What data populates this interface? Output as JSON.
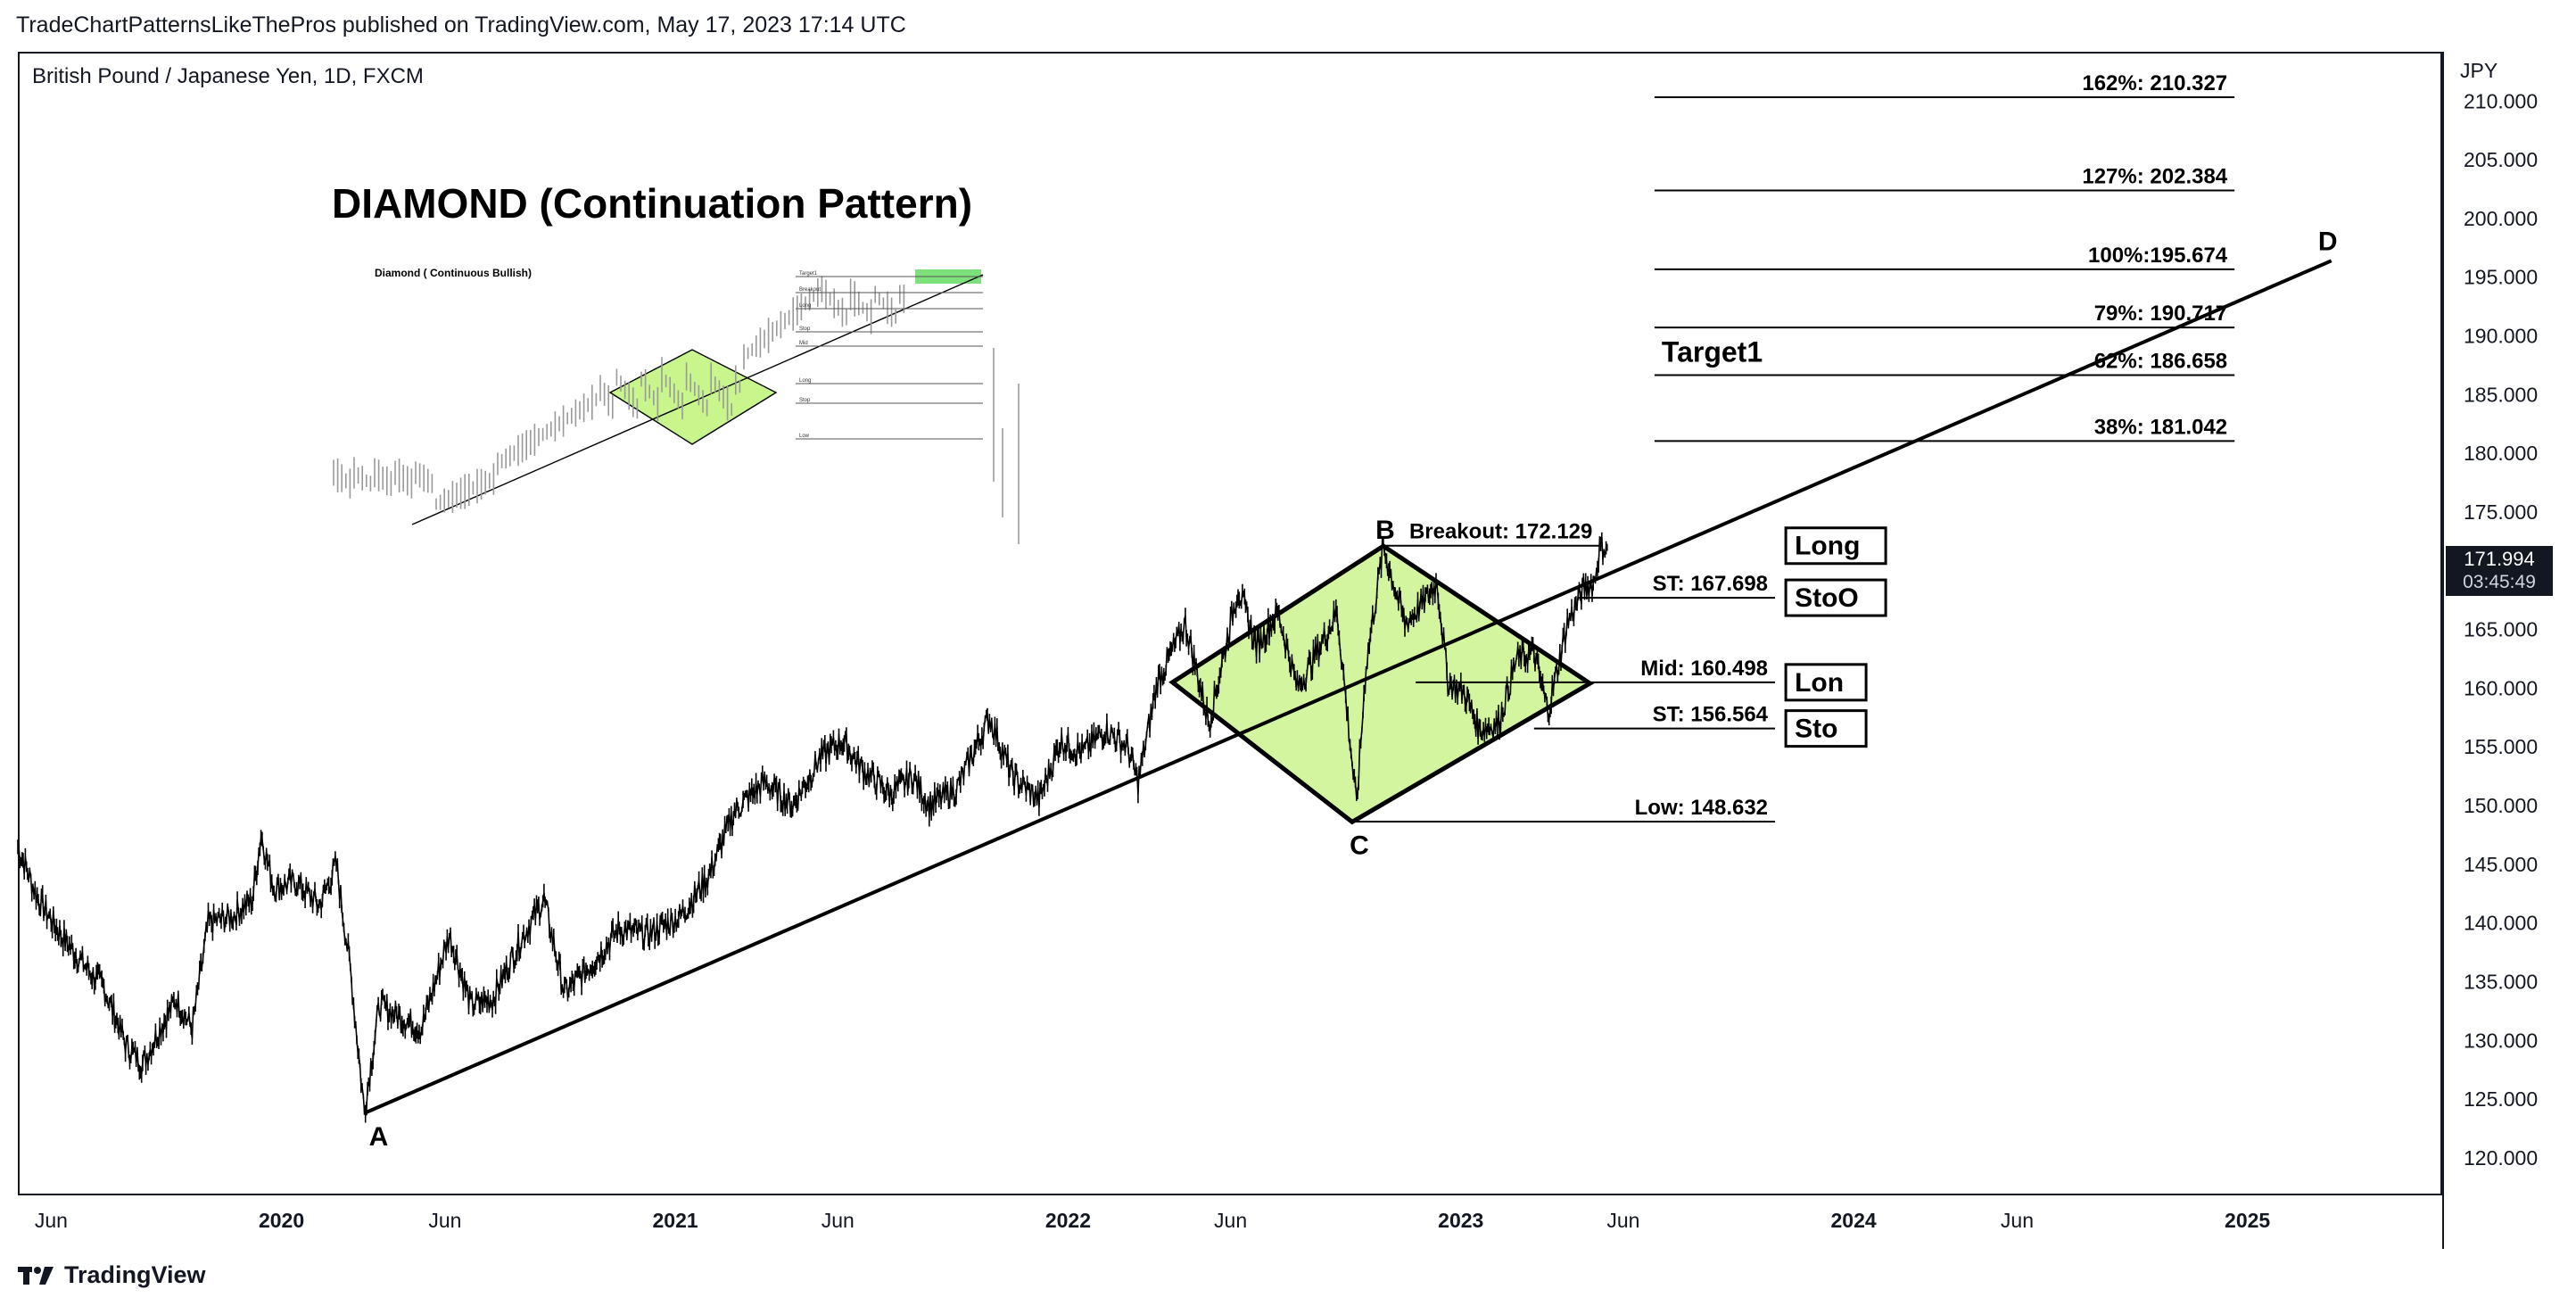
{
  "header": {
    "publish_line": "TradeChartPatternsLikeThePros published on TradingView.com, May 17, 2023 17:14 UTC",
    "symbol_title": "British Pound / Japanese Yen, 1D, FXCM",
    "currency": "JPY"
  },
  "footer": {
    "brand": "TradingView",
    "icon": "tradingview-logo-icon"
  },
  "price_badge": {
    "price": "171.994",
    "countdown": "03:45:49",
    "color": "#131722"
  },
  "chart_data": {
    "type": "line",
    "title": "DIAMOND (Continuation Pattern)",
    "inset_title": "Diamond ( Continuous Bullish)",
    "x_ticks": [
      "Jun",
      "2020",
      "Jun",
      "2021",
      "Jun",
      "2022",
      "Jun",
      "2023",
      "Jun",
      "2024",
      "Jun",
      "2025"
    ],
    "x_tick_dates": [
      "2019-06",
      "2020-01",
      "2020-06",
      "2021-01",
      "2021-06",
      "2022-01",
      "2022-06",
      "2023-01",
      "2023-06",
      "2024-01",
      "2024-06",
      "2025-01"
    ],
    "y_ticks": [
      "120.000",
      "125.000",
      "130.000",
      "135.000",
      "140.000",
      "145.000",
      "150.000",
      "155.000",
      "160.000",
      "165.000",
      "170.000",
      "175.000",
      "180.000",
      "185.000",
      "190.000",
      "195.000",
      "200.000",
      "205.000",
      "210.000"
    ],
    "ylim": [
      116.8,
      214.2
    ],
    "xlim": [
      "2019-05-01",
      "2025-07-01"
    ],
    "price_series": {
      "color": "#000000",
      "points": [
        [
          "2019-05-01",
          146.5
        ],
        [
          "2019-05-20",
          142.0
        ],
        [
          "2019-06-10",
          139.0
        ],
        [
          "2019-07-01",
          136.5
        ],
        [
          "2019-07-20",
          134.5
        ],
        [
          "2019-08-10",
          129.5
        ],
        [
          "2019-08-25",
          128.0
        ],
        [
          "2019-09-10",
          131.0
        ],
        [
          "2019-09-25",
          133.5
        ],
        [
          "2019-10-10",
          131.0
        ],
        [
          "2019-10-25",
          140.0
        ],
        [
          "2019-11-15",
          140.5
        ],
        [
          "2019-12-05",
          142.0
        ],
        [
          "2019-12-13",
          147.5
        ],
        [
          "2019-12-25",
          143.0
        ],
        [
          "2020-01-15",
          143.5
        ],
        [
          "2020-02-05",
          141.5
        ],
        [
          "2020-02-21",
          145.0
        ],
        [
          "2020-03-05",
          136.0
        ],
        [
          "2020-03-18",
          124.0
        ],
        [
          "2020-04-01",
          133.0
        ],
        [
          "2020-04-20",
          132.0
        ],
        [
          "2020-05-10",
          131.0
        ],
        [
          "2020-06-05",
          139.0
        ],
        [
          "2020-06-25",
          133.0
        ],
        [
          "2020-07-15",
          133.5
        ],
        [
          "2020-08-10",
          138.5
        ],
        [
          "2020-09-01",
          142.0
        ],
        [
          "2020-09-20",
          134.0
        ],
        [
          "2020-10-15",
          136.5
        ],
        [
          "2020-11-10",
          139.5
        ],
        [
          "2020-12-05",
          139.0
        ],
        [
          "2021-01-05",
          140.5
        ],
        [
          "2021-02-01",
          144.0
        ],
        [
          "2021-02-25",
          149.5
        ],
        [
          "2021-03-25",
          152.0
        ],
        [
          "2021-04-20",
          150.0
        ],
        [
          "2021-05-15",
          154.0
        ],
        [
          "2021-06-05",
          155.5
        ],
        [
          "2021-06-25",
          153.0
        ],
        [
          "2021-07-20",
          151.0
        ],
        [
          "2021-08-10",
          152.5
        ],
        [
          "2021-08-25",
          150.0
        ],
        [
          "2021-09-20",
          151.5
        ],
        [
          "2021-10-20",
          157.5
        ],
        [
          "2021-11-10",
          152.5
        ],
        [
          "2021-12-05",
          150.5
        ],
        [
          "2021-12-25",
          155.5
        ],
        [
          "2022-01-15",
          154.5
        ],
        [
          "2022-02-05",
          156.5
        ],
        [
          "2022-02-25",
          155.0
        ],
        [
          "2022-03-07",
          152.0
        ],
        [
          "2022-03-25",
          160.5
        ],
        [
          "2022-04-20",
          165.5
        ],
        [
          "2022-05-12",
          157.0
        ],
        [
          "2022-06-08",
          168.5
        ],
        [
          "2022-06-25",
          163.5
        ],
        [
          "2022-07-15",
          166.5
        ],
        [
          "2022-08-02",
          160.0
        ],
        [
          "2022-08-20",
          163.0
        ],
        [
          "2022-09-08",
          166.5
        ],
        [
          "2022-09-26",
          150.0
        ],
        [
          "2022-10-05",
          162.0
        ],
        [
          "2022-10-21",
          172.0
        ],
        [
          "2022-11-10",
          165.5
        ],
        [
          "2022-11-25",
          167.0
        ],
        [
          "2022-12-10",
          169.0
        ],
        [
          "2022-12-20",
          160.5
        ],
        [
          "2023-01-05",
          159.5
        ],
        [
          "2023-01-18",
          156.5
        ],
        [
          "2023-02-05",
          157.0
        ],
        [
          "2023-02-22",
          162.5
        ],
        [
          "2023-03-10",
          163.0
        ],
        [
          "2023-03-23",
          158.0
        ],
        [
          "2023-04-10",
          165.5
        ],
        [
          "2023-04-25",
          168.5
        ],
        [
          "2023-05-05",
          169.0
        ],
        [
          "2023-05-10",
          172.0
        ],
        [
          "2023-05-17",
          171.994
        ]
      ]
    },
    "trendline": {
      "from": [
        "2020-03-18",
        123.8
      ],
      "to": [
        "2025-03-20",
        196.4
      ],
      "start_label": "A",
      "end_label": "D"
    },
    "diamond": {
      "fill": "#d4f5a0",
      "vertices": [
        [
          "2022-04-08",
          160.5
        ],
        [
          "2022-10-21",
          172.1
        ],
        [
          "2023-05-01",
          160.4
        ],
        [
          "2022-09-22",
          148.6
        ]
      ],
      "top_label": "B",
      "bottom_label": "C"
    },
    "levels": [
      {
        "label": "Breakout: 172.129",
        "value": 172.129,
        "x_from": "2022-10-21",
        "x_to": "2023-05-10"
      },
      {
        "label": "ST: 167.698",
        "value": 167.698,
        "x_from": "2023-04-20",
        "x_to": "2023-10-20"
      },
      {
        "label": "Mid: 160.498",
        "value": 160.498,
        "x_from": "2022-11-20",
        "x_to": "2023-10-20"
      },
      {
        "label": "ST: 156.564",
        "value": 156.564,
        "x_from": "2023-03-10",
        "x_to": "2023-10-20"
      },
      {
        "label": "Low: 148.632",
        "value": 148.632,
        "x_from": "2022-09-22",
        "x_to": "2023-10-20"
      }
    ],
    "fib_levels": [
      {
        "label": "162%: 210.327",
        "value": 210.327
      },
      {
        "label": "127%: 202.384",
        "value": 202.384
      },
      {
        "label": "100%:195.674",
        "value": 195.674
      },
      {
        "label": "79%: 190.717",
        "value": 190.717
      },
      {
        "label": "62%: 186.658",
        "value": 186.658
      },
      {
        "label": "38%: 181.042",
        "value": 181.042
      }
    ],
    "fib_range": [
      "2023-06-30",
      "2024-12-20"
    ],
    "target_label": "Target1",
    "order_boxes": [
      {
        "label": "Long",
        "value": 172.129
      },
      {
        "label": "StoO",
        "value": 167.698
      },
      {
        "label": "Lon",
        "value": 160.498
      },
      {
        "label": "Sto",
        "value": 156.564
      }
    ],
    "inset_level_labels": [
      "Target1",
      "Breakout",
      "Long",
      "Stop",
      "Mid",
      "Long",
      "Stop",
      "Low"
    ],
    "grid": false,
    "legend": "none"
  }
}
